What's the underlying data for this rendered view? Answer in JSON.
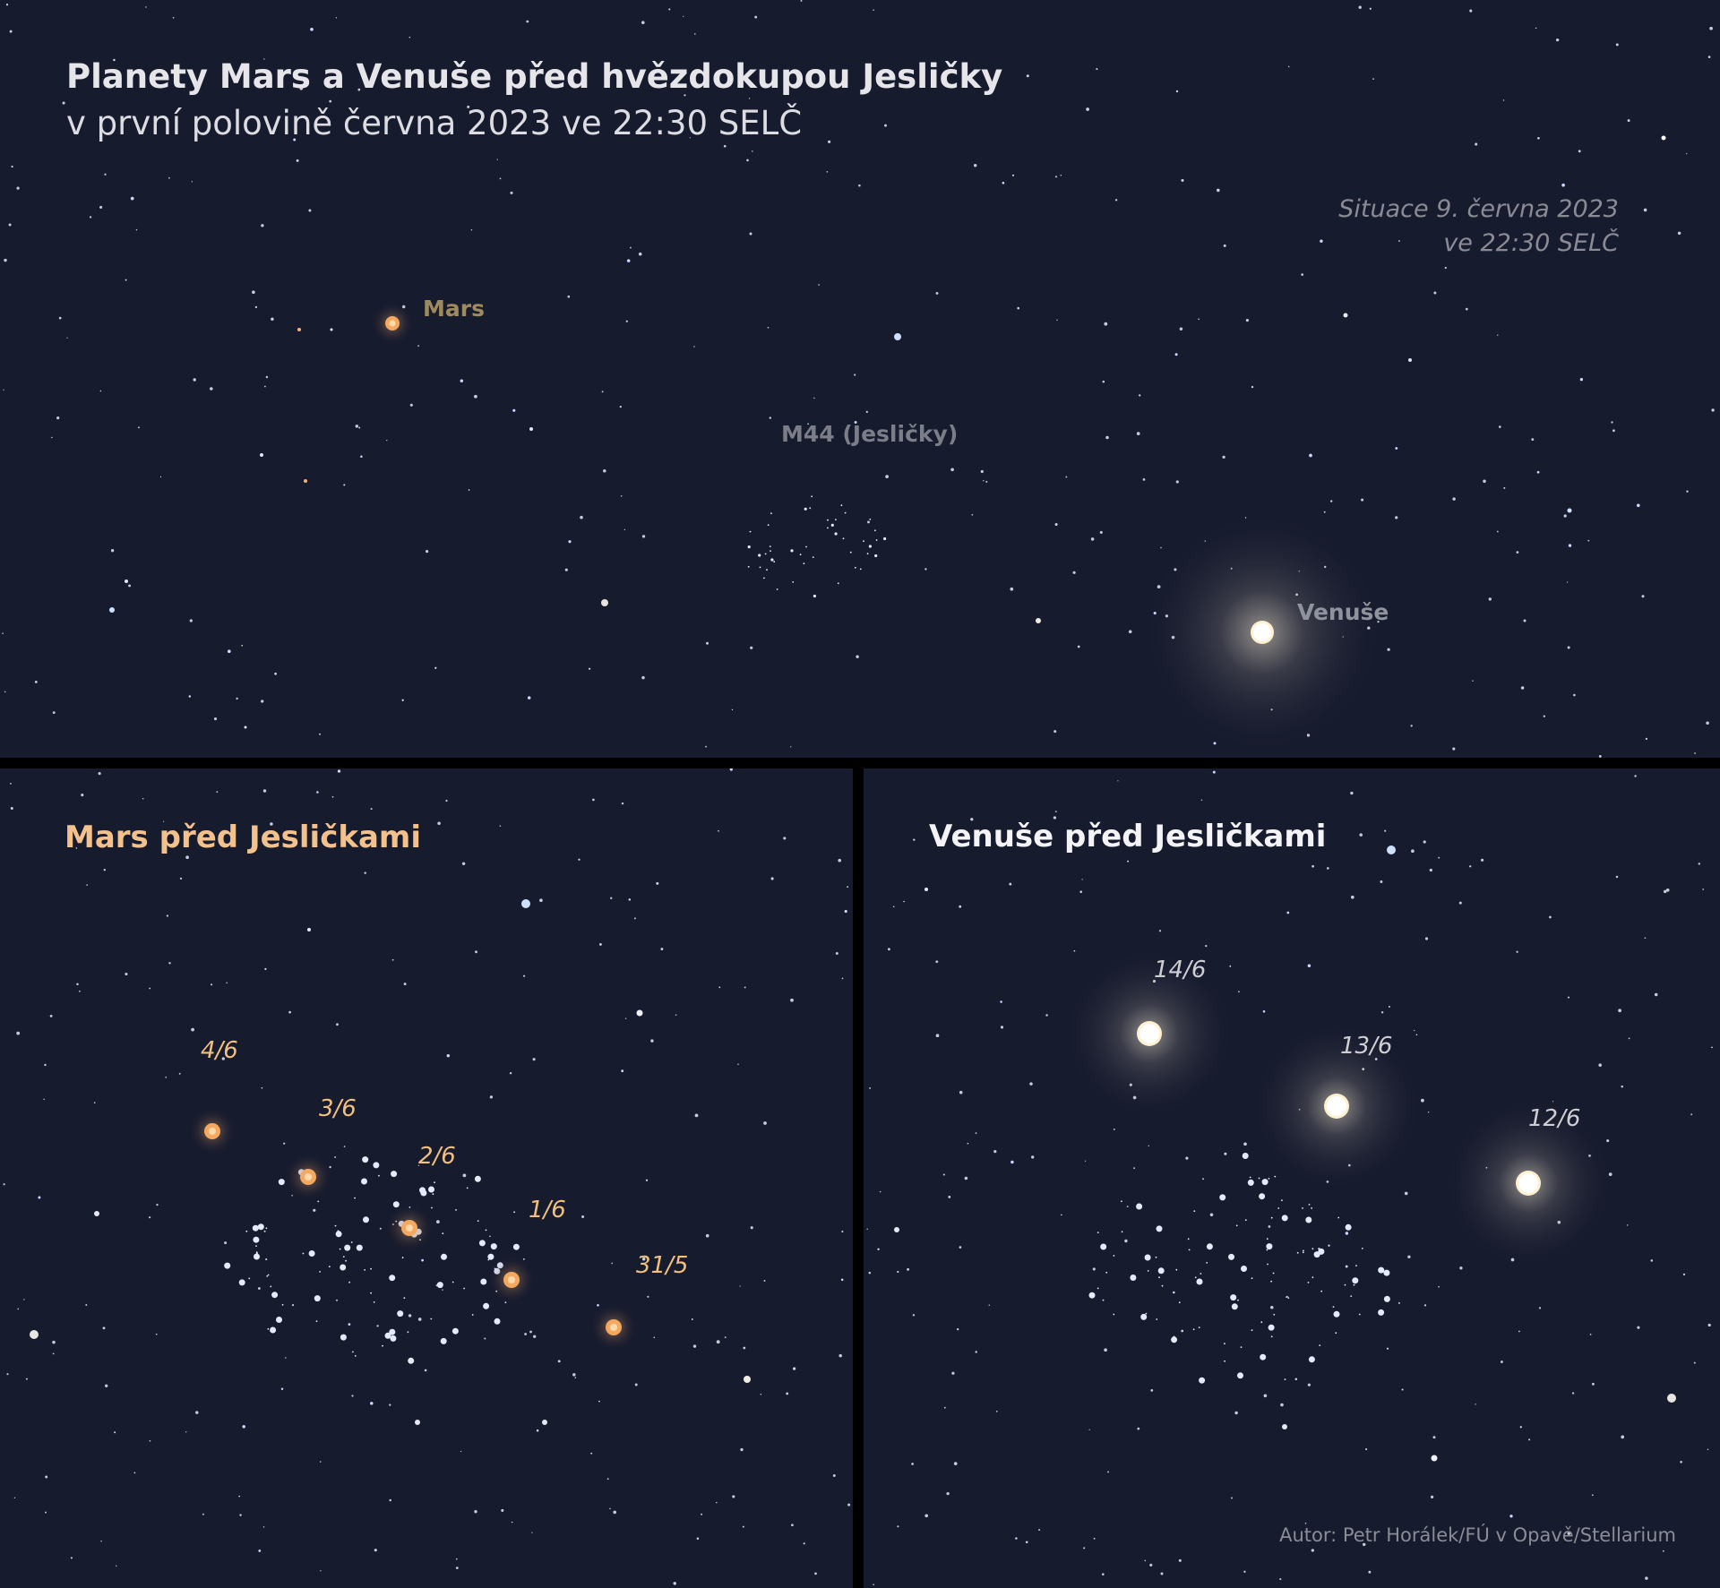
{
  "top": {
    "title": "Planety Mars a Venuše před hvězdokupou Jesličky",
    "subtitle": "v první polovině června 2023 ve 22:30 SELČ",
    "situation_line1": "Situace 9. června 2023",
    "situation_line2": "ve 22:30 SELČ",
    "labels": {
      "mars": "Mars",
      "m44": "M44 (Jesličky)",
      "venus": "Venuše"
    }
  },
  "mars_panel": {
    "title": "Mars před Jesličkami",
    "dates": [
      "4/6",
      "3/6",
      "2/6",
      "1/6",
      "31/5"
    ]
  },
  "venus_panel": {
    "title": "Venuše před Jesličkami",
    "dates": [
      "14/6",
      "13/6",
      "12/6"
    ],
    "credit": "Autor: Petr Horálek/FÚ v Opavě/Stellarium"
  },
  "colors": {
    "sky": "#171b2e",
    "mars": "#f5a860",
    "venus": "#fff6e0",
    "mars_label": "#9d8b5f",
    "mars_dates": "#f2c07e",
    "star_blue": "#cfe0ff"
  }
}
